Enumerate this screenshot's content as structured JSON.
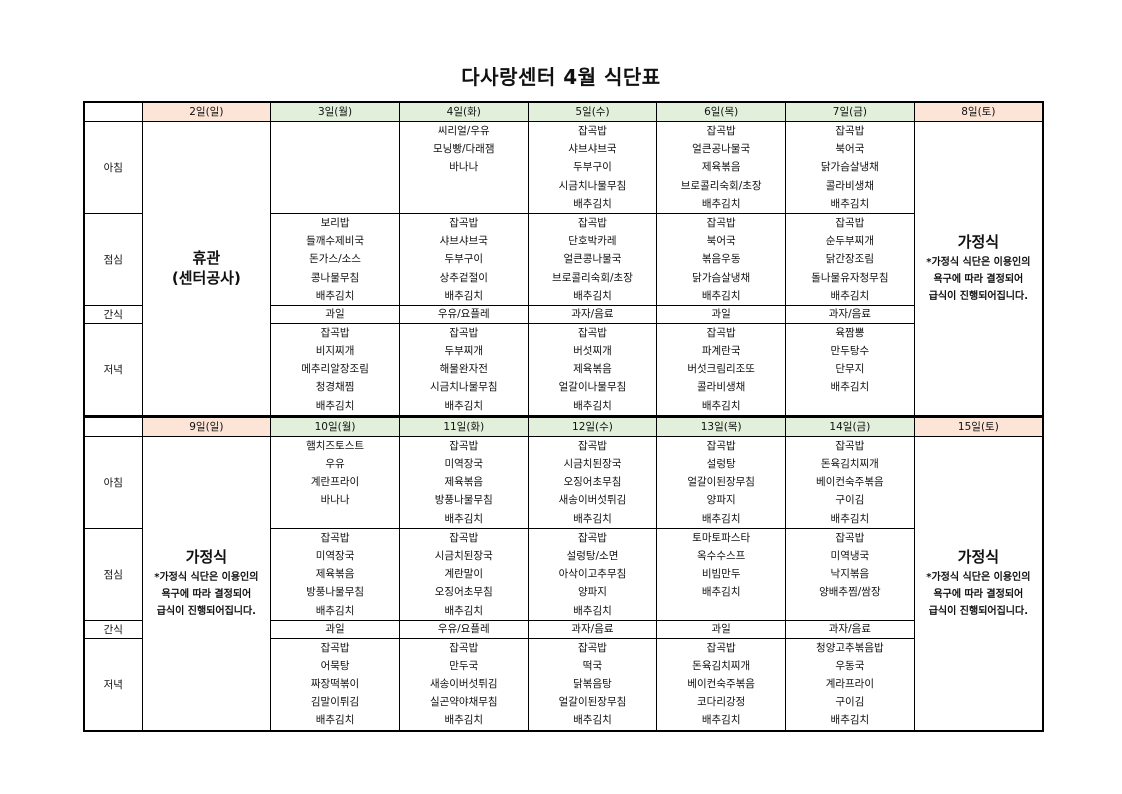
{
  "title": "다사랑센터 4월 식단표",
  "meal_labels": {
    "breakfast": "아침",
    "lunch": "점심",
    "snack": "간식",
    "dinner": "저녁"
  },
  "colors": {
    "weekday_header": "#e2efda",
    "weekend_header": "#fce4d6"
  },
  "weeks": [
    {
      "headers": [
        "2일(일)",
        "3일(월)",
        "4일(화)",
        "5일(수)",
        "6일(목)",
        "7일(금)",
        "8일(토)"
      ],
      "sunday": {
        "title": "휴관",
        "subtitle": "(센터공사)"
      },
      "saturday": {
        "title": "가정식",
        "note": "*가정식 식단은 이용인의 욕구에 따라 결정되어 급식이 진행되어집니다."
      },
      "breakfast": [
        [],
        [
          "씨리얼/우유",
          "모닝빵/다래잼",
          "바나나"
        ],
        [
          "잡곡밥",
          "샤브샤브국",
          "두부구이",
          "시금치나물무침",
          "배추김치"
        ],
        [
          "잡곡밥",
          "얼큰공나물국",
          "제육볶음",
          "브로콜리숙회/초장",
          "배추김치"
        ],
        [
          "잡곡밥",
          "북어국",
          "닭가슴살냉채",
          "콜라비생채",
          "배추김치"
        ]
      ],
      "lunch": [
        [
          "보리밥",
          "들깨수제비국",
          "돈가스/소스",
          "콩나물무침",
          "배추김치"
        ],
        [
          "잡곡밥",
          "샤브샤브국",
          "두부구이",
          "상추겉절이",
          "배추김치"
        ],
        [
          "잡곡밥",
          "단호박카레",
          "얼큰콩나물국",
          "브로콜리숙회/초장",
          "배추김치"
        ],
        [
          "잡곡밥",
          "북어국",
          "볶음우동",
          "닭가슴살냉채",
          "배추김치"
        ],
        [
          "잡곡밥",
          "순두부찌개",
          "닭간장조림",
          "돌나물유자청무침",
          "배추김치"
        ]
      ],
      "snack": [
        "과일",
        "우유/요플레",
        "과자/음료",
        "과일",
        "과자/음료"
      ],
      "dinner": [
        [
          "잡곡밥",
          "비지찌개",
          "메추리알장조림",
          "청경채찜",
          "배추김치"
        ],
        [
          "잡곡밥",
          "두부찌개",
          "해물완자전",
          "시금치나물무침",
          "배추김치"
        ],
        [
          "잡곡밥",
          "버섯찌개",
          "제육볶음",
          "얼갈이나물무침",
          "배추김치"
        ],
        [
          "잡곡밥",
          "파계란국",
          "버섯크림리조또",
          "콜라비생채",
          "배추김치"
        ],
        [
          "육짬뽕",
          "만두탕수",
          "단무지",
          "배추김치"
        ]
      ]
    },
    {
      "headers": [
        "9일(일)",
        "10일(월)",
        "11일(화)",
        "12일(수)",
        "13일(목)",
        "14일(금)",
        "15일(토)"
      ],
      "sunday": {
        "title": "가정식",
        "note": "*가정식 식단은 이용인의 욕구에 따라 결정되어 급식이 진행되어집니다."
      },
      "saturday": {
        "title": "가정식",
        "note": "*가정식 식단은 이용인의 욕구에 따라 결정되어 급식이 진행되어집니다."
      },
      "breakfast": [
        [
          "햄치즈토스트",
          "우유",
          "계란프라이",
          "바나나"
        ],
        [
          "잡곡밥",
          "미역장국",
          "제육볶음",
          "방풍나물무침",
          "배추김치"
        ],
        [
          "잡곡밥",
          "시금치된장국",
          "오징어초무침",
          "새송이버섯튀김",
          "배추김치"
        ],
        [
          "잡곡밥",
          "설렁탕",
          "얼갈이된장무침",
          "양파지",
          "배추김치"
        ],
        [
          "잡곡밥",
          "돈육김치찌개",
          "베이컨숙주볶음",
          "구이김",
          "배추김치"
        ]
      ],
      "lunch": [
        [
          "잡곡밥",
          "미역장국",
          "제육볶음",
          "방풍나물무침",
          "배추김치"
        ],
        [
          "잡곡밥",
          "시금치된장국",
          "계란말이",
          "오징어초무침",
          "배추김치"
        ],
        [
          "잡곡밥",
          "설렁탕/소면",
          "아삭이고추무침",
          "양파지",
          "배추김치"
        ],
        [
          "토마토파스타",
          "옥수수스프",
          "비빔만두",
          "배추김치"
        ],
        [
          "잡곡밥",
          "미역냉국",
          "낙지볶음",
          "양배추찜/쌈장"
        ]
      ],
      "snack": [
        "과일",
        "우유/요플레",
        "과자/음료",
        "과일",
        "과자/음료"
      ],
      "dinner": [
        [
          "잡곡밥",
          "어묵탕",
          "짜장떡볶이",
          "김말이튀김",
          "배추김치"
        ],
        [
          "잡곡밥",
          "만두국",
          "새송이버섯튀김",
          "실곤약야채무침",
          "배추김치"
        ],
        [
          "잡곡밥",
          "떡국",
          "닭볶음탕",
          "얼갈이된장무침",
          "배추김치"
        ],
        [
          "잡곡밥",
          "돈육김치찌개",
          "베이컨숙주볶음",
          "코다리강정",
          "배추김치"
        ],
        [
          "청양고추볶음밥",
          "우동국",
          "계라프라이",
          "구이김",
          "배추김치"
        ]
      ]
    }
  ]
}
